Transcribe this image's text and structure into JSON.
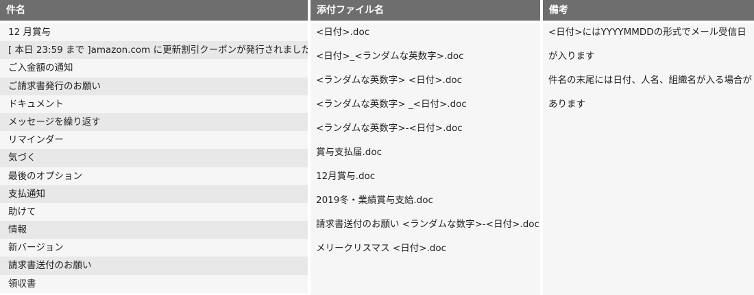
{
  "headers": {
    "subject": "件名",
    "attachment": "添付ファイル名",
    "note": "備考"
  },
  "subjects": [
    "12 月賞与",
    "[ 本日 23:59 まで ]amazon.com に更新割引クーポンが発行されました",
    "ご入金額の通知",
    "ご請求書発行のお願い",
    "ドキュメント",
    "メッセージを繰り返す",
    "リマインダー",
    "気づく",
    "最後のオプション",
    "支払通知",
    "助けて",
    "情報",
    "新バージョン",
    "請求書送付のお願い",
    "領収書"
  ],
  "attachments": [
    "<日付>.doc",
    "<日付>_<ランダムな英数字>.doc",
    "<ランダムな英数字> <日付>.doc",
    "<ランダムな英数字> _<日付>.doc",
    "<ランダムな英数字>-<日付>.doc",
    "賞与支払届.doc",
    "12月賞与.doc",
    "2019冬・業績賞与支給.doc",
    "請求書送付のお願い <ランダムな数字>-<日付>.doc",
    "メリークリスマス <日付>.doc"
  ],
  "notes": [
    "<日付>にはYYYYMMDDの形式でメール受信日",
    "が入ります",
    "件名の末尾には日付、人名、組織名が入る場合が",
    "あります"
  ]
}
